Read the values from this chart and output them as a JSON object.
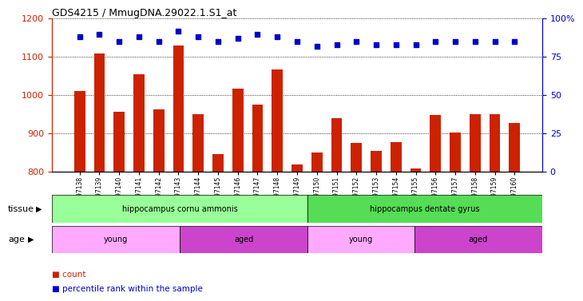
{
  "title": "GDS4215 / MmugDNA.29022.1.S1_at",
  "samples": [
    "GSM297138",
    "GSM297139",
    "GSM297140",
    "GSM297141",
    "GSM297142",
    "GSM297143",
    "GSM297144",
    "GSM297145",
    "GSM297146",
    "GSM297147",
    "GSM297148",
    "GSM297149",
    "GSM297150",
    "GSM297151",
    "GSM297152",
    "GSM297153",
    "GSM297154",
    "GSM297155",
    "GSM297156",
    "GSM297157",
    "GSM297158",
    "GSM297159",
    "GSM297160"
  ],
  "counts": [
    1012,
    1108,
    957,
    1055,
    963,
    1130,
    951,
    847,
    1017,
    975,
    1068,
    820,
    850,
    940,
    876,
    855,
    878,
    810,
    948,
    902,
    950,
    950,
    928
  ],
  "percentile": [
    88,
    90,
    85,
    88,
    85,
    92,
    88,
    85,
    87,
    90,
    88,
    85,
    82,
    83,
    85,
    83,
    83,
    83,
    85,
    85,
    85,
    85,
    85
  ],
  "bar_color": "#cc2200",
  "dot_color": "#0000cc",
  "ylim_left": [
    800,
    1200
  ],
  "ylim_right": [
    0,
    100
  ],
  "yticks_left": [
    800,
    900,
    1000,
    1100,
    1200
  ],
  "yticks_right": [
    0,
    25,
    50,
    75,
    100
  ],
  "background_color": "#ffffff",
  "tissue_groups": [
    {
      "label": "hippocampus cornu ammonis",
      "start": 0,
      "end": 11,
      "color": "#99ff99"
    },
    {
      "label": "hippocampus dentate gyrus",
      "start": 12,
      "end": 22,
      "color": "#55dd55"
    }
  ],
  "age_groups": [
    {
      "label": "young",
      "start": 0,
      "end": 5,
      "color": "#ffaaff"
    },
    {
      "label": "aged",
      "start": 6,
      "end": 11,
      "color": "#cc44cc"
    },
    {
      "label": "young",
      "start": 12,
      "end": 16,
      "color": "#ffaaff"
    },
    {
      "label": "aged",
      "start": 17,
      "end": 22,
      "color": "#cc44cc"
    }
  ]
}
